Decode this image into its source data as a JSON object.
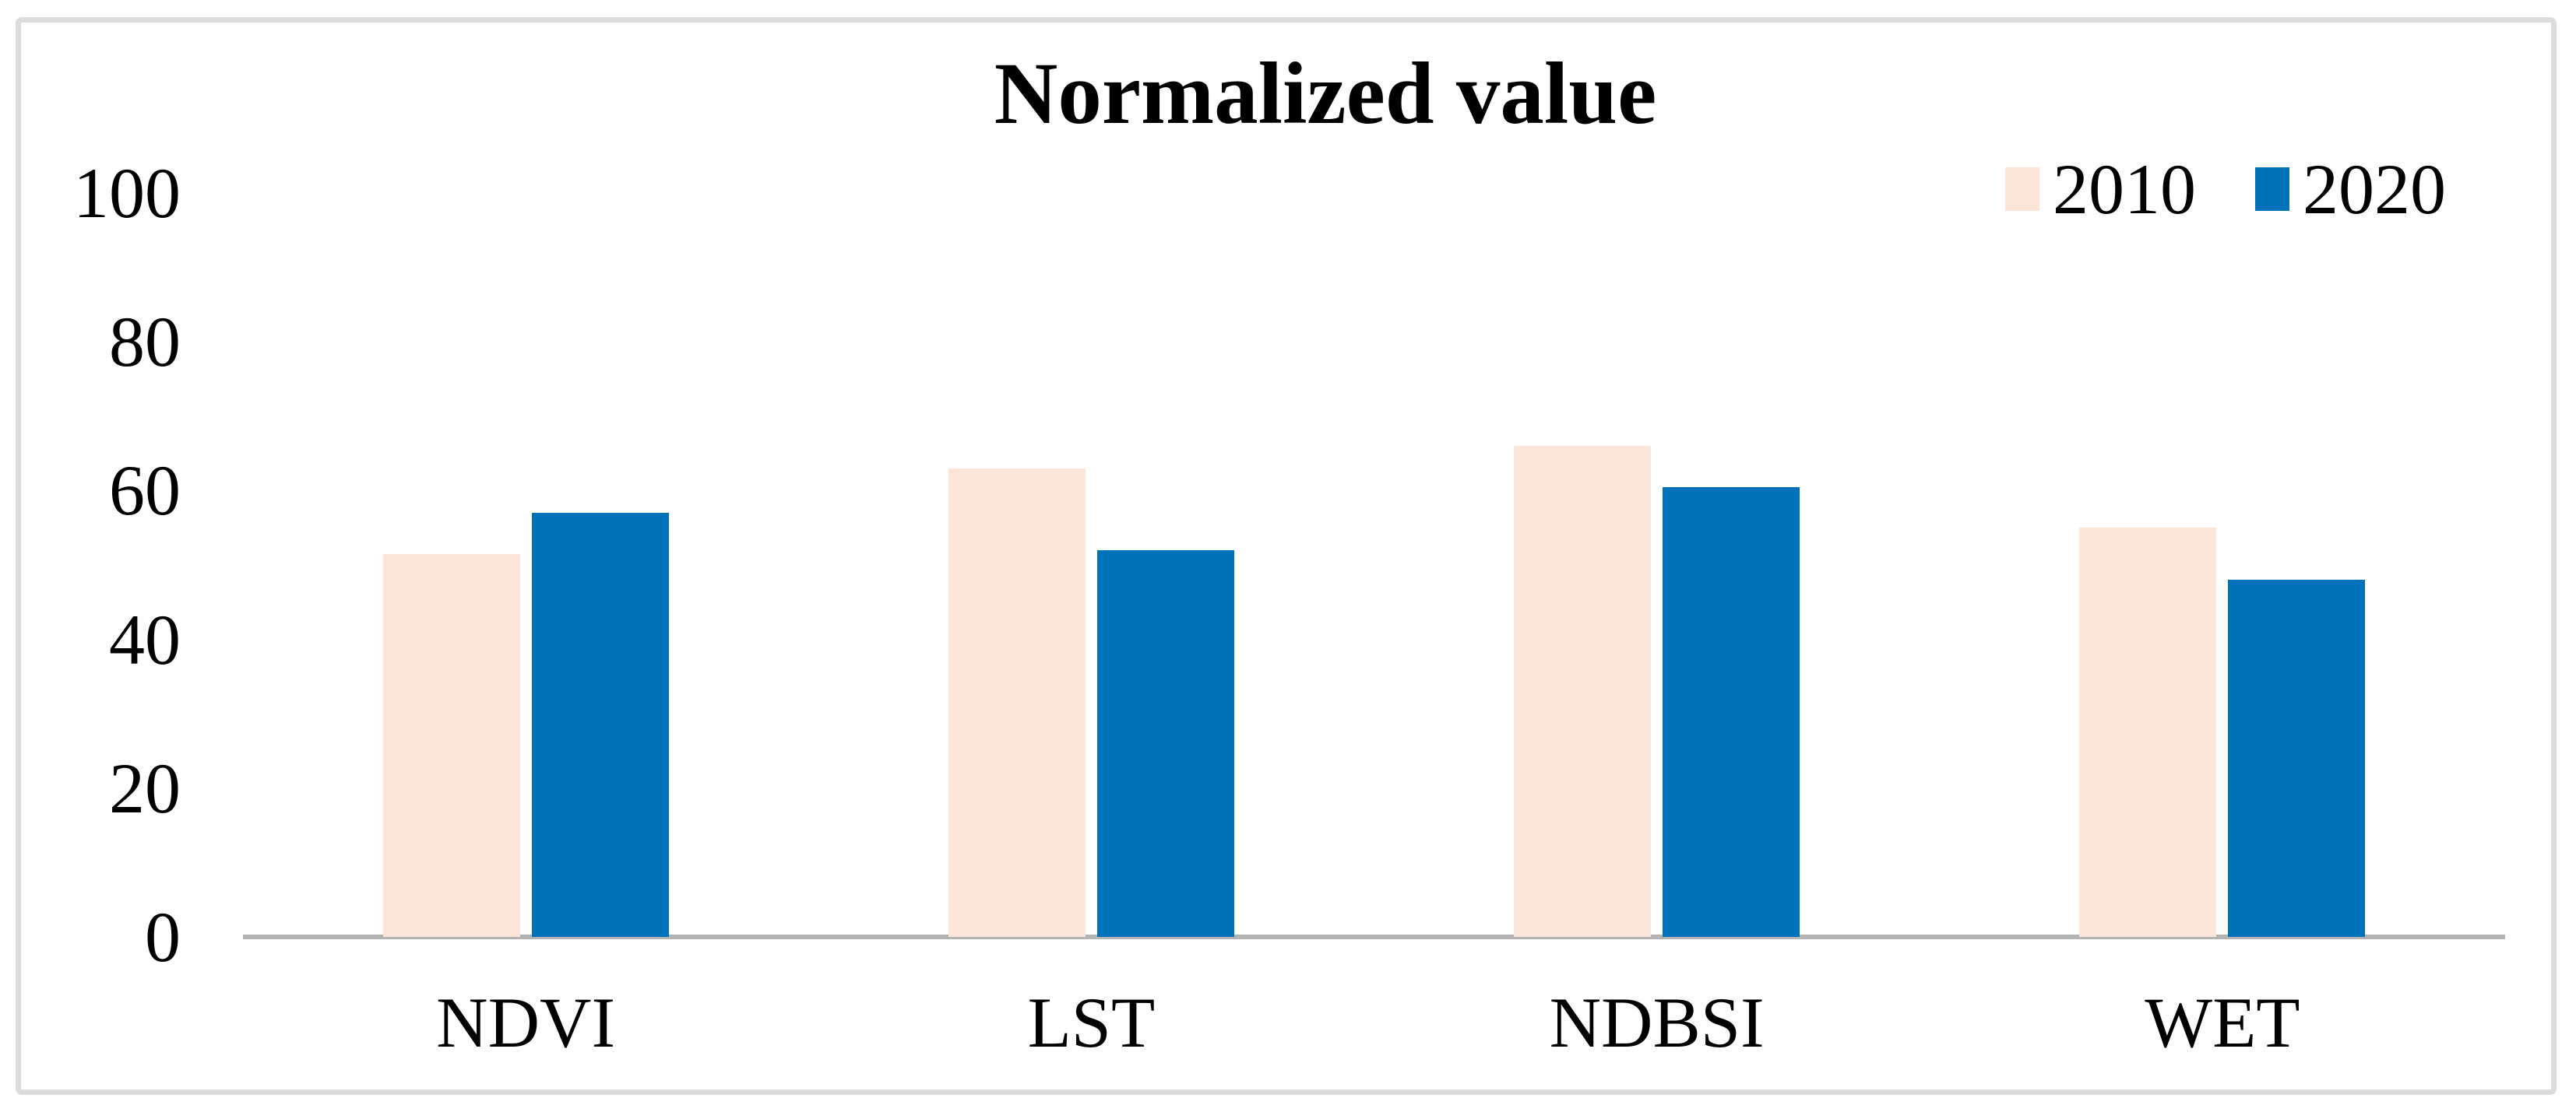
{
  "chart_data": {
    "type": "bar",
    "title": "Normalized value",
    "categories": [
      "NDVI",
      "LST",
      "NDBSI",
      "WET"
    ],
    "series": [
      {
        "name": "2010",
        "color": "#fce4d6",
        "values": [
          51.5,
          63,
          66,
          55
        ]
      },
      {
        "name": "2020",
        "color": "#0072b9",
        "values": [
          57,
          52,
          60.5,
          48
        ]
      }
    ],
    "xlabel": "",
    "ylabel": "",
    "ylim": [
      0,
      100
    ],
    "yticks": [
      0,
      20,
      40,
      60,
      80,
      100
    ],
    "grid": false,
    "legend_position": "top-right",
    "colors": {
      "axis_line": "#b3b3b3",
      "figure_border": "#dcdcdc",
      "text": "#000000",
      "background": "#ffffff"
    }
  }
}
